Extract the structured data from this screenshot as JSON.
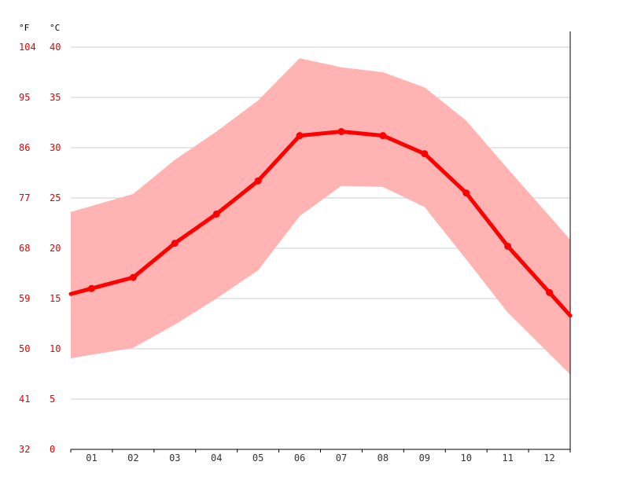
{
  "chart_data": {
    "type": "line",
    "axis_units": {
      "left": "°F",
      "right": "°C"
    },
    "categories": [
      "01",
      "02",
      "03",
      "04",
      "05",
      "06",
      "07",
      "08",
      "09",
      "10",
      "11",
      "12"
    ],
    "y_celsius_ticks": [
      "0",
      "5",
      "10",
      "15",
      "20",
      "25",
      "30",
      "35",
      "40"
    ],
    "y_fahrenheit_ticks": [
      "32",
      "41",
      "50",
      "59",
      "68",
      "77",
      "86",
      "95",
      "104"
    ],
    "ylim": [
      0,
      40
    ],
    "grid": true,
    "series": [
      {
        "kind": "mean",
        "values": [
          16.0,
          17.1,
          20.5,
          23.4,
          26.7,
          31.2,
          31.6,
          31.2,
          29.4,
          25.5,
          20.2,
          15.6
        ]
      },
      {
        "kind": "range_high",
        "values": [
          24.2,
          25.4,
          28.8,
          31.6,
          34.7,
          38.9,
          38.0,
          37.5,
          36.0,
          32.7,
          27.9,
          23.2
        ]
      },
      {
        "kind": "range_low",
        "values": [
          9.4,
          10.1,
          12.4,
          15.0,
          17.8,
          23.2,
          26.2,
          26.1,
          24.1,
          18.9,
          13.6,
          9.5
        ]
      }
    ],
    "colors": {
      "line": "#ff0000",
      "band": "#ffb3b3",
      "axis_text": "#e60000",
      "month_text": "#333333",
      "grid": "#cccccc"
    }
  }
}
